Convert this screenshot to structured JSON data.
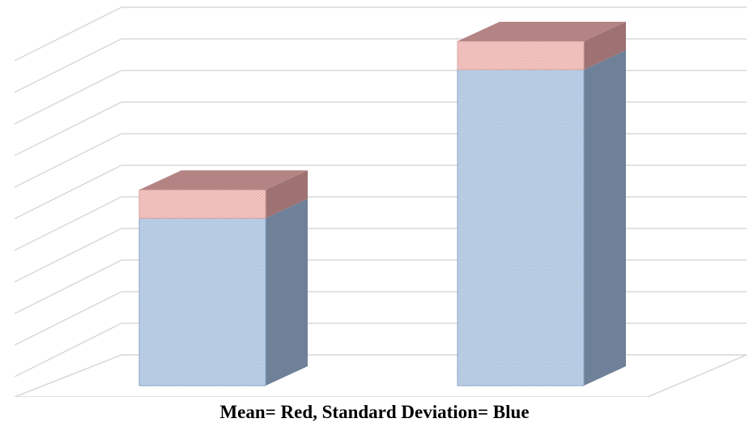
{
  "caption": "Mean= Red, Standard Deviation= Blue",
  "chart_data": {
    "type": "bar",
    "stacked": true,
    "three_d": true,
    "categories": [
      "",
      ""
    ],
    "series": [
      {
        "name": "Standard Deviation",
        "values": [
          5.3,
          10.0
        ]
      },
      {
        "name": "Mean",
        "values": [
          0.9,
          0.9
        ]
      }
    ],
    "ylim": [
      0,
      12
    ],
    "grid": true,
    "axis_labels_visible": false,
    "colors": {
      "Standard Deviation": "#b8cce4",
      "Mean": "#f2c6c2",
      "sd_side": "#6f8198",
      "mean_top": "#b48484",
      "mean_side": "#9e7272",
      "bar_outline": "#8aa6c8",
      "grid": "#d9d9d9"
    }
  }
}
